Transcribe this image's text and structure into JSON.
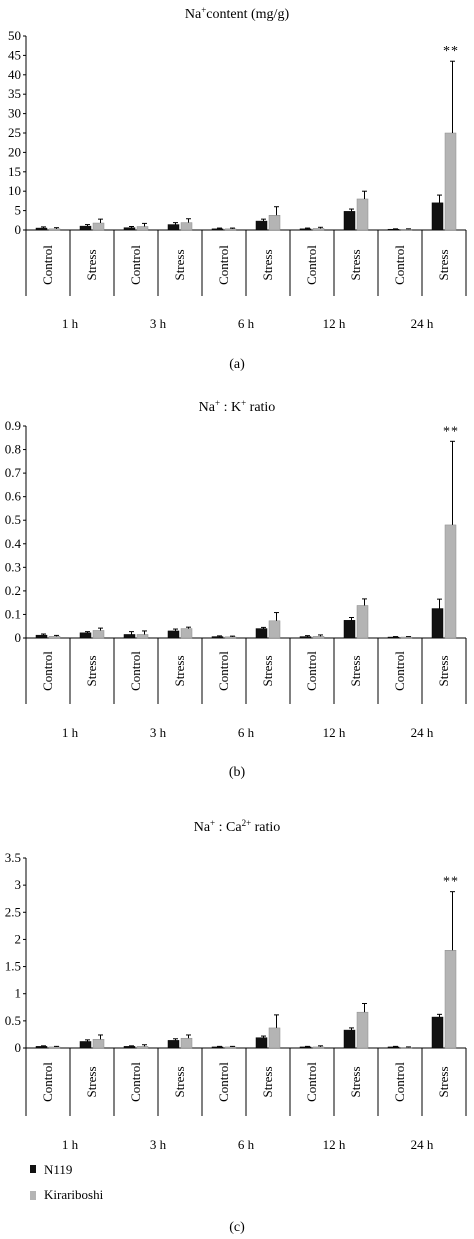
{
  "colors": {
    "n119": "#111111",
    "kirariboshi": "#b4b4b4"
  },
  "groups": [
    "1 h",
    "3 h",
    "6 h",
    "12 h",
    "24 h"
  ],
  "conditions": [
    "Control",
    "Stress"
  ],
  "legend": {
    "n119": "N119",
    "kirariboshi": "Kirariboshi"
  },
  "chart_data": [
    {
      "type": "bar",
      "panel_label": "(a)",
      "title_base": "Na",
      "title_sup": "+",
      "title_rest": "content (mg/g)",
      "ylim": [
        0,
        50
      ],
      "yticks": [
        "0",
        "5",
        "10",
        "15",
        "20",
        "25",
        "30",
        "35",
        "40",
        "45",
        "50"
      ],
      "significance": "**",
      "series": [
        {
          "name": "N119",
          "values": [
            0.5,
            1.0,
            0.6,
            1.4,
            0.3,
            2.3,
            0.3,
            4.8,
            0.2,
            7.0
          ],
          "errors": [
            0.3,
            0.4,
            0.3,
            0.5,
            0.2,
            0.5,
            0.2,
            0.6,
            0.1,
            2.0
          ]
        },
        {
          "name": "Kirariboshi",
          "values": [
            0.3,
            1.8,
            0.9,
            1.9,
            0.3,
            3.8,
            0.4,
            8.0,
            0.2,
            25.0
          ],
          "errors": [
            0.3,
            1.0,
            0.8,
            1.0,
            0.2,
            2.2,
            0.3,
            2.0,
            0.1,
            18.5
          ]
        }
      ]
    },
    {
      "type": "bar",
      "panel_label": "(b)",
      "title_base": "Na",
      "title_sup": "+",
      "title_rest": " : K",
      "title_sup2": "+",
      "title_rest2": " ratio",
      "ylim": [
        0,
        0.9
      ],
      "yticks": [
        "0",
        "0.1",
        "0.2",
        "0.3",
        "0.4",
        "0.5",
        "0.6",
        "0.7",
        "0.8",
        "0.9"
      ],
      "significance": "**",
      "series": [
        {
          "name": "N119",
          "values": [
            0.012,
            0.022,
            0.015,
            0.03,
            0.006,
            0.04,
            0.006,
            0.075,
            0.004,
            0.125
          ],
          "errors": [
            0.005,
            0.005,
            0.012,
            0.008,
            0.003,
            0.005,
            0.004,
            0.012,
            0.002,
            0.04
          ]
        },
        {
          "name": "Kirariboshi",
          "values": [
            0.007,
            0.032,
            0.015,
            0.04,
            0.005,
            0.073,
            0.007,
            0.138,
            0.004,
            0.48
          ],
          "errors": [
            0.004,
            0.01,
            0.015,
            0.006,
            0.003,
            0.035,
            0.006,
            0.028,
            0.002,
            0.355
          ]
        }
      ]
    },
    {
      "type": "bar",
      "panel_label": "(c)",
      "title_base": "Na",
      "title_sup": "+",
      "title_rest": " : Ca",
      "title_sup2": "2+",
      "title_rest2": " ratio",
      "ylim": [
        0,
        3.5
      ],
      "yticks": [
        "0",
        "0.5",
        "1",
        "1.5",
        "2",
        "2.5",
        "3",
        "3.5"
      ],
      "significance": "**",
      "series": [
        {
          "name": "N119",
          "values": [
            0.03,
            0.12,
            0.03,
            0.14,
            0.02,
            0.19,
            0.02,
            0.33,
            0.02,
            0.57
          ],
          "errors": [
            0.01,
            0.03,
            0.01,
            0.03,
            0.01,
            0.03,
            0.01,
            0.04,
            0.01,
            0.05
          ]
        },
        {
          "name": "Kirariboshi",
          "values": [
            0.02,
            0.16,
            0.03,
            0.18,
            0.02,
            0.37,
            0.02,
            0.66,
            0.01,
            1.8
          ],
          "errors": [
            0.01,
            0.08,
            0.03,
            0.06,
            0.01,
            0.24,
            0.02,
            0.16,
            0.01,
            1.08
          ]
        }
      ]
    }
  ]
}
